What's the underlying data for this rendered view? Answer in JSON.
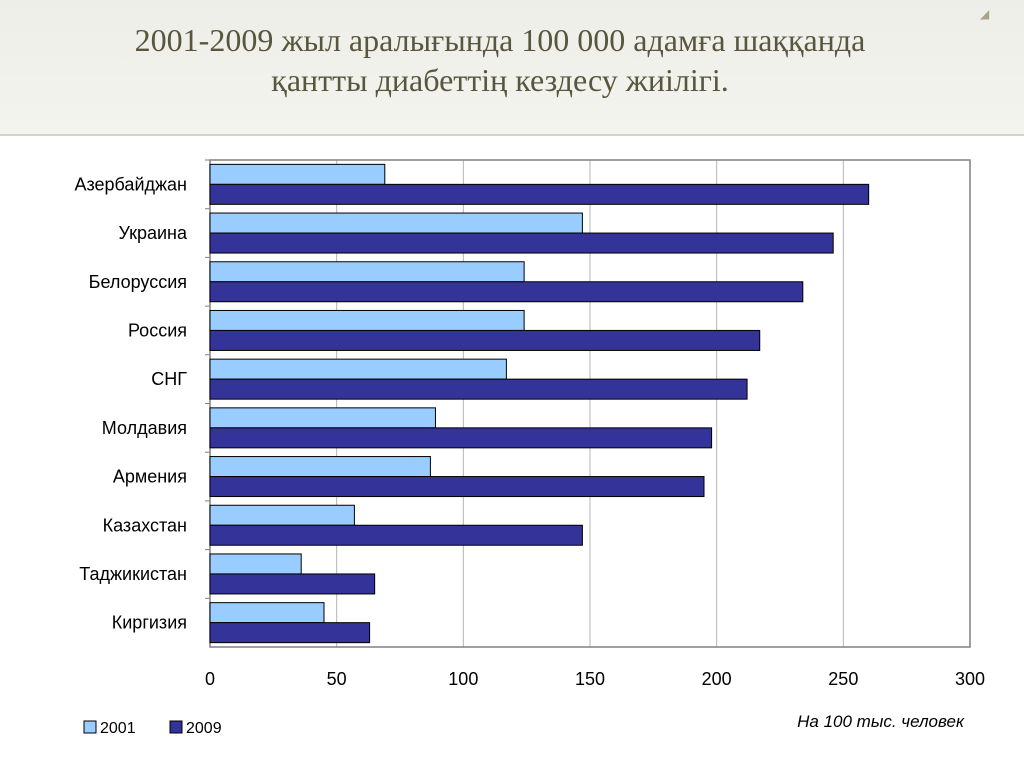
{
  "slide": {
    "title_line1": "2001-2009 жыл аралығында 100 000 адамға шаққанда",
    "title_line2": "қантты диабеттің кездесу  жиілігі.",
    "corner_icon": "triangle-marker-icon"
  },
  "chart_data": {
    "type": "bar",
    "orientation": "horizontal",
    "categories": [
      "Азербайджан",
      "Украина",
      "Белоруссия",
      "Россия",
      "СНГ",
      "Молдавия",
      "Армения",
      "Казахстан",
      "Таджикистан",
      "Киргизия"
    ],
    "series": [
      {
        "name": "2001",
        "color": "#99ccff",
        "values": [
          69,
          147,
          124,
          124,
          117,
          89,
          87,
          57,
          36,
          45
        ]
      },
      {
        "name": "2009",
        "color": "#333399",
        "values": [
          260,
          246,
          234,
          217,
          212,
          198,
          195,
          147,
          65,
          63
        ]
      }
    ],
    "xlim": [
      0,
      300
    ],
    "xticks": [
      "0",
      "50",
      "100",
      "150",
      "200",
      "250",
      "300"
    ],
    "unit_label": "На 100 тыс. человек",
    "grid": true,
    "legend": "bottom-left"
  }
}
